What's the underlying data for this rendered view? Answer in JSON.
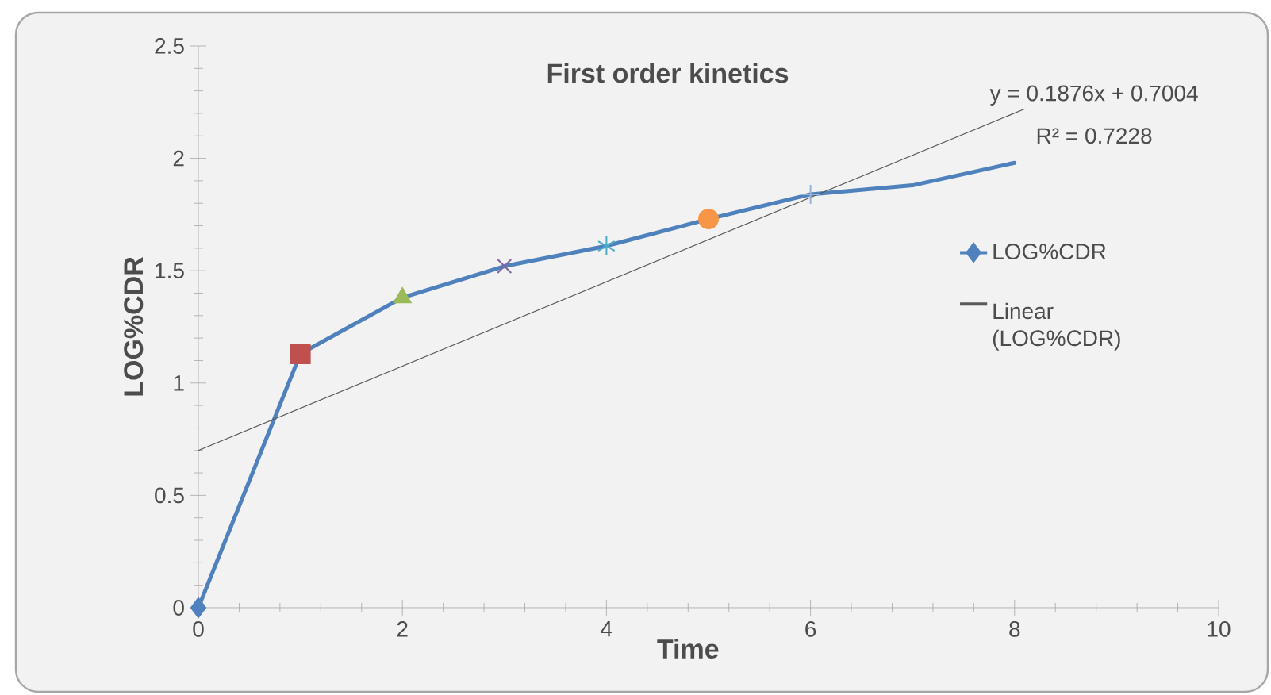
{
  "chart_data": {
    "type": "line",
    "title": "First order kinetics",
    "xlabel": "Time",
    "ylabel": "LOG%CDR",
    "x": [
      0,
      1,
      2,
      3,
      4,
      5,
      6,
      7,
      8
    ],
    "series": [
      {
        "name": "LOG%CDR",
        "color": "#4f81bd",
        "colors": [
          "#4f81bd",
          "#c0504d",
          "#9bbb59",
          "#8064a2",
          "#4bacc6",
          "#f79646",
          "#95b3d7",
          "#d99694",
          "#c3d69b"
        ],
        "values": [
          0,
          1.13,
          1.38,
          1.52,
          1.61,
          1.73,
          1.84,
          1.88,
          1.98
        ]
      },
      {
        "name": "Linear (LOG%CDR)",
        "color": "#595959",
        "x": [
          0,
          8.1
        ],
        "values": [
          0.7,
          2.22
        ],
        "marker": "none"
      }
    ],
    "annotations": [
      "y = 0.1876x + 0.7004",
      "R² = 0.7228"
    ],
    "xlim": [
      0,
      10
    ],
    "ylim": [
      0,
      2.5
    ],
    "xticks": [
      0,
      2,
      4,
      6,
      8,
      10
    ],
    "yticks": [
      0,
      0.5,
      1,
      1.5,
      2,
      2.5
    ],
    "grid": false,
    "legend": "right",
    "marker": "diamond"
  }
}
